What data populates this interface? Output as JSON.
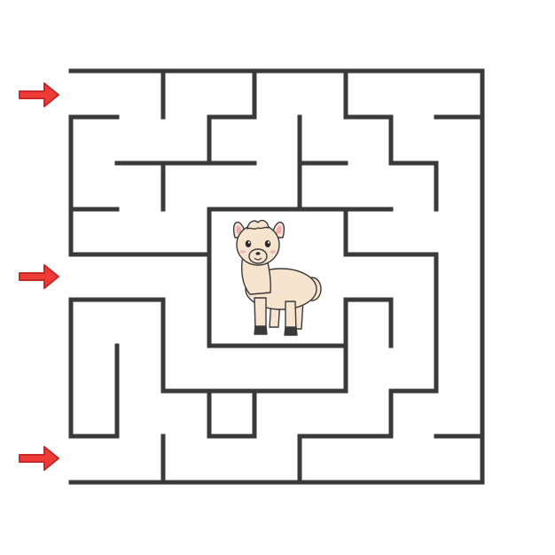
{
  "puzzle": {
    "type": "square-maze",
    "wall_color": "#3a3a3a",
    "background_color": "#ffffff",
    "arrow_color": "#ef3b36",
    "arrow_count": 3,
    "goal": "llama-icon",
    "llama": {
      "body_color": "#f6e4cf",
      "ear_inner_color": "#f2a7b2",
      "hoof_color": "#3a3a3a"
    }
  }
}
